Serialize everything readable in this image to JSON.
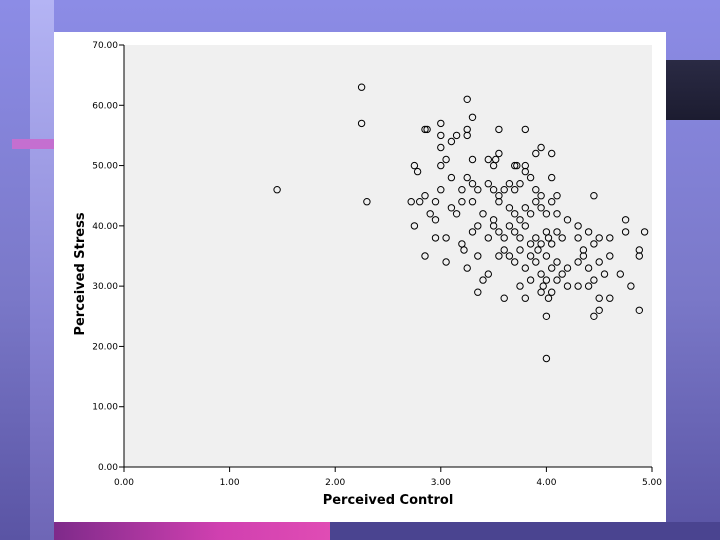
{
  "chart_data": {
    "type": "scatter",
    "xlabel": "Perceived Control",
    "ylabel": "Perceived Stress",
    "xlim": [
      0,
      5
    ],
    "ylim": [
      0,
      70
    ],
    "x_ticks": [
      "0.00",
      "1.00",
      "2.00",
      "3.00",
      "4.00",
      "5.00"
    ],
    "y_ticks": [
      "0.00",
      "10.00",
      "20.00",
      "30.00",
      "40.00",
      "50.00",
      "60.00",
      "70.00"
    ],
    "grid": false,
    "marker": "hollow-circle",
    "colors": {
      "plot_bg": "#f0f0f0",
      "marker": "#000000",
      "axis": "#000000"
    },
    "points": [
      [
        2.25,
        63
      ],
      [
        2.25,
        57
      ],
      [
        1.45,
        46
      ],
      [
        2.3,
        44
      ],
      [
        3.25,
        61
      ],
      [
        2.85,
        56
      ],
      [
        2.87,
        56
      ],
      [
        3.0,
        57
      ],
      [
        3.0,
        55
      ],
      [
        3.1,
        54
      ],
      [
        3.15,
        55
      ],
      [
        3.25,
        56
      ],
      [
        3.25,
        55
      ],
      [
        3.3,
        58
      ],
      [
        3.55,
        56
      ],
      [
        3.8,
        56
      ],
      [
        3.0,
        53
      ],
      [
        3.05,
        51
      ],
      [
        3.3,
        51
      ],
      [
        3.45,
        51
      ],
      [
        3.5,
        50
      ],
      [
        3.52,
        51
      ],
      [
        3.55,
        52
      ],
      [
        3.7,
        50
      ],
      [
        3.72,
        50
      ],
      [
        3.8,
        50
      ],
      [
        3.95,
        53
      ],
      [
        3.9,
        52
      ],
      [
        4.05,
        52
      ],
      [
        2.75,
        50
      ],
      [
        2.78,
        49
      ],
      [
        3.0,
        50
      ],
      [
        2.8,
        44
      ],
      [
        2.85,
        45
      ],
      [
        2.95,
        44
      ],
      [
        3.0,
        46
      ],
      [
        3.1,
        48
      ],
      [
        3.2,
        46
      ],
      [
        3.25,
        48
      ],
      [
        3.3,
        47
      ],
      [
        3.35,
        46
      ],
      [
        3.45,
        47
      ],
      [
        3.5,
        46
      ],
      [
        3.55,
        45
      ],
      [
        3.6,
        46
      ],
      [
        3.65,
        47
      ],
      [
        3.7,
        46
      ],
      [
        3.75,
        47
      ],
      [
        3.8,
        49
      ],
      [
        3.85,
        48
      ],
      [
        3.9,
        46
      ],
      [
        3.95,
        45
      ],
      [
        4.05,
        48
      ],
      [
        4.1,
        45
      ],
      [
        4.45,
        45
      ],
      [
        2.72,
        44
      ],
      [
        2.9,
        42
      ],
      [
        2.95,
        41
      ],
      [
        3.1,
        43
      ],
      [
        3.15,
        42
      ],
      [
        3.2,
        44
      ],
      [
        3.3,
        44
      ],
      [
        3.4,
        42
      ],
      [
        3.5,
        41
      ],
      [
        3.55,
        44
      ],
      [
        3.65,
        43
      ],
      [
        3.7,
        42
      ],
      [
        3.75,
        41
      ],
      [
        3.8,
        43
      ],
      [
        3.85,
        42
      ],
      [
        3.9,
        44
      ],
      [
        3.95,
        43
      ],
      [
        4.0,
        42
      ],
      [
        4.05,
        44
      ],
      [
        4.1,
        42
      ],
      [
        4.2,
        41
      ],
      [
        4.3,
        40
      ],
      [
        4.4,
        39
      ],
      [
        4.75,
        41
      ],
      [
        2.75,
        40
      ],
      [
        2.95,
        38
      ],
      [
        3.05,
        38
      ],
      [
        3.2,
        37
      ],
      [
        3.22,
        36
      ],
      [
        3.3,
        39
      ],
      [
        3.35,
        40
      ],
      [
        3.45,
        38
      ],
      [
        3.5,
        40
      ],
      [
        3.55,
        39
      ],
      [
        3.6,
        38
      ],
      [
        3.65,
        40
      ],
      [
        3.7,
        39
      ],
      [
        3.75,
        38
      ],
      [
        3.8,
        40
      ],
      [
        3.85,
        37
      ],
      [
        3.9,
        38
      ],
      [
        3.92,
        36
      ],
      [
        3.95,
        37
      ],
      [
        4.0,
        39
      ],
      [
        4.02,
        38
      ],
      [
        4.05,
        37
      ],
      [
        4.1,
        39
      ],
      [
        4.15,
        38
      ],
      [
        4.3,
        38
      ],
      [
        4.35,
        36
      ],
      [
        4.45,
        37
      ],
      [
        4.5,
        38
      ],
      [
        4.6,
        38
      ],
      [
        4.75,
        39
      ],
      [
        4.93,
        39
      ],
      [
        2.85,
        35
      ],
      [
        3.05,
        34
      ],
      [
        3.25,
        33
      ],
      [
        3.35,
        35
      ],
      [
        3.45,
        32
      ],
      [
        3.55,
        35
      ],
      [
        3.6,
        36
      ],
      [
        3.65,
        35
      ],
      [
        3.7,
        34
      ],
      [
        3.75,
        36
      ],
      [
        3.8,
        33
      ],
      [
        3.85,
        35
      ],
      [
        3.9,
        34
      ],
      [
        3.95,
        32
      ],
      [
        4.0,
        35
      ],
      [
        4.05,
        33
      ],
      [
        4.1,
        34
      ],
      [
        4.15,
        32
      ],
      [
        4.2,
        33
      ],
      [
        4.3,
        34
      ],
      [
        4.35,
        35
      ],
      [
        4.4,
        33
      ],
      [
        4.45,
        31
      ],
      [
        4.5,
        34
      ],
      [
        4.55,
        32
      ],
      [
        4.6,
        35
      ],
      [
        4.7,
        32
      ],
      [
        4.88,
        35
      ],
      [
        4.88,
        36
      ],
      [
        3.35,
        29
      ],
      [
        3.4,
        31
      ],
      [
        3.6,
        28
      ],
      [
        3.75,
        30
      ],
      [
        3.8,
        28
      ],
      [
        3.85,
        31
      ],
      [
        3.95,
        29
      ],
      [
        3.97,
        30
      ],
      [
        4.0,
        31
      ],
      [
        4.02,
        28
      ],
      [
        4.05,
        29
      ],
      [
        4.1,
        31
      ],
      [
        4.2,
        30
      ],
      [
        4.3,
        30
      ],
      [
        4.4,
        30
      ],
      [
        4.45,
        25
      ],
      [
        4.5,
        26
      ],
      [
        4.5,
        28
      ],
      [
        4.6,
        28
      ],
      [
        4.8,
        30
      ],
      [
        4.88,
        26
      ],
      [
        4.0,
        25
      ],
      [
        4.0,
        18
      ]
    ]
  }
}
